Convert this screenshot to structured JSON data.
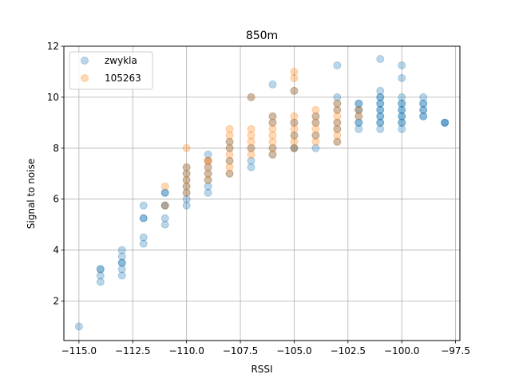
{
  "chart_data": {
    "type": "scatter",
    "title": "850m",
    "xlabel": "RSSI",
    "ylabel": "Signal to noise",
    "xlim": [
      -115.7,
      -97.3
    ],
    "ylim": [
      0.45,
      12
    ],
    "xticks": [
      -115.0,
      -112.5,
      -110.0,
      -107.5,
      -105.0,
      -102.5,
      -100.0,
      -97.5
    ],
    "xtick_labels": [
      "−115.0",
      "−112.5",
      "−110.0",
      "−107.5",
      "−105.0",
      "−102.5",
      "−100.0",
      "−97.5"
    ],
    "yticks": [
      2,
      4,
      6,
      8,
      10,
      12
    ],
    "ytick_labels": [
      "2",
      "4",
      "6",
      "8",
      "10",
      "12"
    ],
    "grid": true,
    "legend_position": "upper-left",
    "series": [
      {
        "name": "zwykla",
        "color": "#1f77b4",
        "alpha": 0.3,
        "points": [
          [
            -115,
            1.0
          ],
          [
            -114,
            2.75
          ],
          [
            -114,
            3.0
          ],
          [
            -114,
            3.25
          ],
          [
            -114,
            3.25
          ],
          [
            -113,
            3.0
          ],
          [
            -113,
            3.25
          ],
          [
            -113,
            3.5
          ],
          [
            -113,
            3.5
          ],
          [
            -113,
            3.75
          ],
          [
            -113,
            4.0
          ],
          [
            -112,
            4.25
          ],
          [
            -112,
            4.5
          ],
          [
            -112,
            5.25
          ],
          [
            -112,
            5.25
          ],
          [
            -112,
            5.75
          ],
          [
            -111,
            5.0
          ],
          [
            -111,
            5.25
          ],
          [
            -111,
            5.75
          ],
          [
            -111,
            5.75
          ],
          [
            -111,
            6.25
          ],
          [
            -111,
            6.25
          ],
          [
            -110,
            5.75
          ],
          [
            -110,
            6.0
          ],
          [
            -110,
            6.25
          ],
          [
            -110,
            6.5
          ],
          [
            -110,
            6.75
          ],
          [
            -110,
            7.0
          ],
          [
            -110,
            7.25
          ],
          [
            -109,
            6.25
          ],
          [
            -109,
            6.5
          ],
          [
            -109,
            6.75
          ],
          [
            -109,
            7.0
          ],
          [
            -109,
            7.25
          ],
          [
            -109,
            7.5
          ],
          [
            -109,
            7.75
          ],
          [
            -108,
            7.0
          ],
          [
            -108,
            7.5
          ],
          [
            -108,
            8.0
          ],
          [
            -108,
            8.25
          ],
          [
            -107,
            7.25
          ],
          [
            -107,
            7.5
          ],
          [
            -107,
            8.0
          ],
          [
            -107,
            10.0
          ],
          [
            -106,
            7.75
          ],
          [
            -106,
            8.0
          ],
          [
            -106,
            9.0
          ],
          [
            -106,
            9.25
          ],
          [
            -106,
            10.5
          ],
          [
            -105,
            8.0
          ],
          [
            -105,
            8.0
          ],
          [
            -105,
            8.5
          ],
          [
            -105,
            9.0
          ],
          [
            -105,
            10.25
          ],
          [
            -104,
            8.0
          ],
          [
            -104,
            8.5
          ],
          [
            -104,
            9.0
          ],
          [
            -104,
            9.25
          ],
          [
            -103,
            8.25
          ],
          [
            -103,
            8.75
          ],
          [
            -103,
            9.0
          ],
          [
            -103,
            9.5
          ],
          [
            -103,
            9.75
          ],
          [
            -103,
            10.0
          ],
          [
            -103,
            11.25
          ],
          [
            -102,
            8.75
          ],
          [
            -102,
            9.0
          ],
          [
            -102,
            9.0
          ],
          [
            -102,
            9.25
          ],
          [
            -102,
            9.5
          ],
          [
            -102,
            9.5
          ],
          [
            -102,
            9.75
          ],
          [
            -102,
            9.75
          ],
          [
            -101,
            8.75
          ],
          [
            -101,
            9.0
          ],
          [
            -101,
            9.0
          ],
          [
            -101,
            9.25
          ],
          [
            -101,
            9.25
          ],
          [
            -101,
            9.5
          ],
          [
            -101,
            9.5
          ],
          [
            -101,
            9.75
          ],
          [
            -101,
            9.75
          ],
          [
            -101,
            10.0
          ],
          [
            -101,
            10.0
          ],
          [
            -101,
            10.25
          ],
          [
            -101,
            11.5
          ],
          [
            -100,
            8.75
          ],
          [
            -100,
            9.0
          ],
          [
            -100,
            9.0
          ],
          [
            -100,
            9.25
          ],
          [
            -100,
            9.25
          ],
          [
            -100,
            9.5
          ],
          [
            -100,
            9.5
          ],
          [
            -100,
            9.75
          ],
          [
            -100,
            9.75
          ],
          [
            -100,
            10.0
          ],
          [
            -100,
            10.75
          ],
          [
            -100,
            11.25
          ],
          [
            -99,
            9.25
          ],
          [
            -99,
            9.25
          ],
          [
            -99,
            9.5
          ],
          [
            -99,
            9.5
          ],
          [
            -99,
            9.75
          ],
          [
            -99,
            9.75
          ],
          [
            -99,
            10.0
          ],
          [
            -98,
            9.0
          ],
          [
            -98,
            9.0
          ],
          [
            -98,
            9.0
          ]
        ]
      },
      {
        "name": "105263",
        "color": "#ff7f0e",
        "alpha": 0.3,
        "points": [
          [
            -111,
            5.75
          ],
          [
            -111,
            6.5
          ],
          [
            -110,
            6.25
          ],
          [
            -110,
            6.5
          ],
          [
            -110,
            6.75
          ],
          [
            -110,
            7.0
          ],
          [
            -110,
            7.25
          ],
          [
            -110,
            8.0
          ],
          [
            -109,
            6.75
          ],
          [
            -109,
            7.0
          ],
          [
            -109,
            7.25
          ],
          [
            -109,
            7.5
          ],
          [
            -109,
            7.5
          ],
          [
            -108,
            7.0
          ],
          [
            -108,
            7.25
          ],
          [
            -108,
            7.5
          ],
          [
            -108,
            7.75
          ],
          [
            -108,
            8.0
          ],
          [
            -108,
            8.25
          ],
          [
            -108,
            8.5
          ],
          [
            -108,
            8.75
          ],
          [
            -107,
            7.75
          ],
          [
            -107,
            8.0
          ],
          [
            -107,
            8.25
          ],
          [
            -107,
            8.5
          ],
          [
            -107,
            8.75
          ],
          [
            -107,
            10.0
          ],
          [
            -106,
            7.75
          ],
          [
            -106,
            8.0
          ],
          [
            -106,
            8.25
          ],
          [
            -106,
            8.5
          ],
          [
            -106,
            8.75
          ],
          [
            -106,
            9.0
          ],
          [
            -106,
            9.25
          ],
          [
            -105,
            8.0
          ],
          [
            -105,
            8.25
          ],
          [
            -105,
            8.5
          ],
          [
            -105,
            8.75
          ],
          [
            -105,
            9.0
          ],
          [
            -105,
            9.25
          ],
          [
            -105,
            10.25
          ],
          [
            -105,
            10.75
          ],
          [
            -105,
            11.0
          ],
          [
            -104,
            8.25
          ],
          [
            -104,
            8.5
          ],
          [
            -104,
            8.75
          ],
          [
            -104,
            9.0
          ],
          [
            -104,
            9.25
          ],
          [
            -104,
            9.5
          ],
          [
            -103,
            8.25
          ],
          [
            -103,
            8.5
          ],
          [
            -103,
            8.75
          ],
          [
            -103,
            9.0
          ],
          [
            -103,
            9.25
          ],
          [
            -103,
            9.5
          ],
          [
            -103,
            9.75
          ],
          [
            -102,
            9.25
          ],
          [
            -102,
            9.5
          ]
        ]
      }
    ]
  }
}
